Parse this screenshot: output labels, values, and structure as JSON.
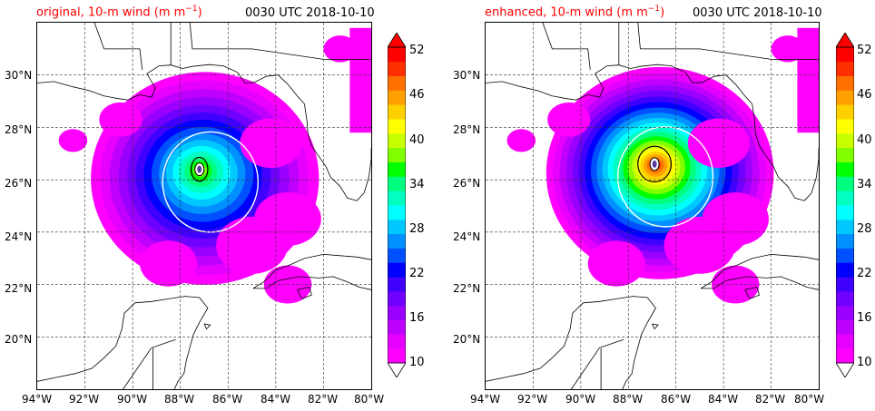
{
  "colors": {
    "title_label": "#ff0000",
    "title_time": "#000000",
    "contour_34": "#ffffff",
    "contour_50": "#000000",
    "coast": "#000000",
    "grid": "#333333"
  },
  "colorbar": {
    "levels": [
      10,
      12,
      14,
      16,
      18,
      20,
      22,
      24,
      26,
      28,
      30,
      32,
      34,
      36,
      38,
      40,
      42,
      44,
      46,
      48,
      50,
      52
    ],
    "tick_labels": [
      "52",
      "46",
      "40",
      "34",
      "28",
      "22",
      "16",
      "10"
    ],
    "colors": [
      "#ff00ff",
      "#e600ff",
      "#c000ff",
      "#9900ff",
      "#7000ff",
      "#4000ff",
      "#0000ff",
      "#0050ff",
      "#0090ff",
      "#00c8ff",
      "#00ffff",
      "#00ffc0",
      "#00ff80",
      "#00ff00",
      "#80ff00",
      "#c8ff00",
      "#ffff00",
      "#ffd000",
      "#ffa000",
      "#ff7000",
      "#ff3000",
      "#ff0000"
    ]
  },
  "panels": [
    {
      "title_left": "original, 10-m wind (m m",
      "title_sup": "−1",
      "title_close": ")",
      "title_time": "0030 UTC 2018-10-10",
      "storm": {
        "lon": -87.2,
        "lat": 26.4,
        "max_wind_level": 40
      }
    },
    {
      "title_left": "enhanced, 10-m wind (m m",
      "title_sup": "−1",
      "title_close": ")",
      "title_time": "0030 UTC 2018-10-10",
      "storm": {
        "lon": -86.9,
        "lat": 26.6,
        "max_wind_level": 52
      }
    }
  ],
  "axes": {
    "lon_range": [
      -94,
      -80
    ],
    "lat_range": [
      18,
      32
    ],
    "x_ticks": [
      "94°W",
      "92°W",
      "90°W",
      "88°W",
      "86°W",
      "84°W",
      "82°W",
      "80°W"
    ],
    "y_ticks": [
      "30°N",
      "28°N",
      "26°N",
      "24°N",
      "22°N",
      "20°N"
    ]
  }
}
